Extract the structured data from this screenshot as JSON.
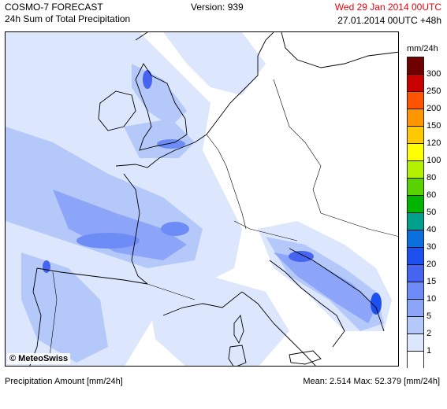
{
  "header": {
    "model_title": "COSMO-7 FORECAST",
    "product": "24h Sum of Total Precipitation",
    "version": "Version: 939",
    "valid_time": "Wed 29 Jan 2014 00UTC",
    "run_info": "27.01.2014 00UTC +48h",
    "valid_color": "#e8000b"
  },
  "legend": {
    "unit": "mm/24h",
    "classes": [
      {
        "label": "300",
        "color": "#6e0000"
      },
      {
        "label": "250",
        "color": "#c80000"
      },
      {
        "label": "200",
        "color": "#ff5500"
      },
      {
        "label": "150",
        "color": "#ff9600"
      },
      {
        "label": "120",
        "color": "#ffc800"
      },
      {
        "label": "100",
        "color": "#ffff00"
      },
      {
        "label": "80",
        "color": "#b4f000"
      },
      {
        "label": "60",
        "color": "#5ad200"
      },
      {
        "label": "50",
        "color": "#00b400"
      },
      {
        "label": "40",
        "color": "#00a08c"
      },
      {
        "label": "30",
        "color": "#0a6edc"
      },
      {
        "label": "20",
        "color": "#1e50f0"
      },
      {
        "label": "15",
        "color": "#4664f0"
      },
      {
        "label": "10",
        "color": "#6e8cf5"
      },
      {
        "label": "5",
        "color": "#8ca5f8"
      },
      {
        "label": "2",
        "color": "#b4c8fa"
      },
      {
        "label": "1",
        "color": "#dce6fc"
      },
      {
        "label": "",
        "color": "#ffffff"
      }
    ]
  },
  "map": {
    "logo_text": "© MeteoSwiss",
    "coastline_color": "#000000"
  },
  "footer": {
    "left": "Precipitation Amount [mm/24h]",
    "stats": "Mean:   2.514 Max:  52.379 [mm/24h]"
  }
}
